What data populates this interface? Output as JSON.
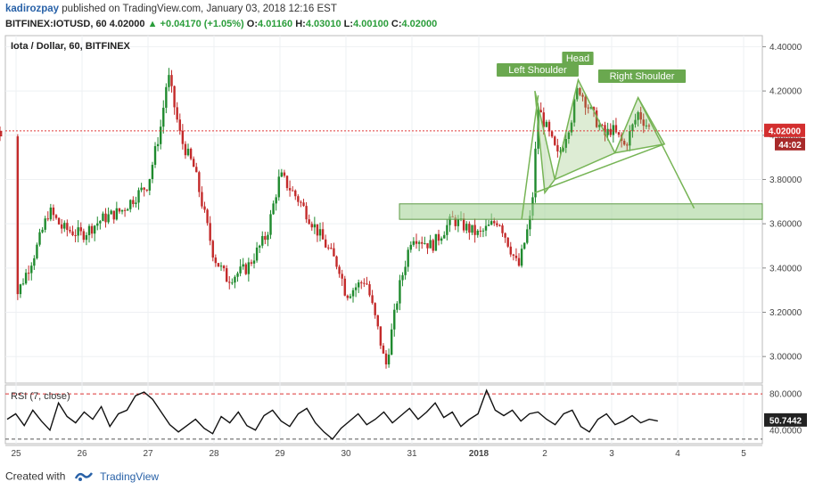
{
  "header": {
    "author": "kadirozpay",
    "published_text": "published on TradingView.com, January 03, 2018 12:16 EST",
    "symbol": "BITFINEX:IOTUSD, 60",
    "price": "4.02000",
    "change": "▲ +0.04170 (+1.05%)",
    "o_label": "O:",
    "o": "4.01160",
    "h_label": "H:",
    "h": "4.03010",
    "l_label": "L:",
    "l": "4.00100",
    "c_label": "C:",
    "c": "4.02000"
  },
  "footer": {
    "created_with": "Created with",
    "brand": "TradingView"
  },
  "chart_data": [
    {
      "type": "candlestick",
      "title": "Iota / Dollar, 60, BITFINEX",
      "x_ticks": [
        "25",
        "26",
        "27",
        "28",
        "29",
        "30",
        "31",
        "2018",
        "2",
        "3",
        "4",
        "5"
      ],
      "y_ticks": [
        "4.40000",
        "4.20000",
        "4.00000",
        "3.80000",
        "3.60000",
        "3.40000",
        "3.20000",
        "3.00000"
      ],
      "ylim": [
        2.88,
        4.45
      ],
      "last_price_label": "4.02000",
      "countdown_label": "44:02",
      "last_price": 4.02,
      "grid": true,
      "annotations": [
        "Left Shoulder",
        "Head",
        "Right Shoulder"
      ],
      "colors": {
        "up": "#1f8a2e",
        "down": "#c32a2a",
        "pattern": "#76b455",
        "zone": "#a7d39a",
        "price_line": "#e03a3a"
      },
      "support_zone": [
        3.62,
        3.69
      ],
      "approx_path": [
        [
          "25",
          3.27
        ],
        [
          "25.3",
          3.48
        ],
        [
          "25.5",
          3.66
        ],
        [
          "25.7",
          3.58
        ],
        [
          "26",
          3.55
        ],
        [
          "26.3",
          3.62
        ],
        [
          "26.6",
          3.66
        ],
        [
          "27",
          3.78
        ],
        [
          "27.2",
          4.05
        ],
        [
          "27.3",
          4.28
        ],
        [
          "27.5",
          3.98
        ],
        [
          "27.7",
          3.85
        ],
        [
          "28",
          3.45
        ],
        [
          "28.2",
          3.35
        ],
        [
          "28.5",
          3.4
        ],
        [
          "28.8",
          3.55
        ],
        [
          "29",
          3.82
        ],
        [
          "29.3",
          3.7
        ],
        [
          "29.6",
          3.55
        ],
        [
          "29.9",
          3.4
        ],
        [
          "30",
          3.28
        ],
        [
          "30.3",
          3.35
        ],
        [
          "30.5",
          3.1
        ],
        [
          "30.6",
          2.95
        ],
        [
          "30.8",
          3.3
        ],
        [
          "31",
          3.55
        ],
        [
          "31.3",
          3.5
        ],
        [
          "31.6",
          3.62
        ],
        [
          "2018",
          3.55
        ],
        [
          "1.3",
          3.62
        ],
        [
          "1.6",
          3.4
        ],
        [
          "1.8",
          3.65
        ],
        [
          "1.9",
          4.12
        ],
        [
          "2",
          4.05
        ],
        [
          "2.2",
          3.9
        ],
        [
          "2.4",
          4.08
        ],
        [
          "2.5",
          4.22
        ],
        [
          "2.7",
          4.1
        ],
        [
          "2.9",
          4.0
        ],
        [
          "3",
          4.03
        ],
        [
          "3.2",
          3.95
        ],
        [
          "3.4",
          4.1
        ],
        [
          "3.6",
          4.02
        ]
      ]
    },
    {
      "type": "line",
      "title": "RSI (7, close)",
      "y_ticks": [
        "80.0000",
        "40.0000"
      ],
      "last_value_label": "50.7442",
      "upper_band": 80,
      "lower_band": 30,
      "values": [
        52,
        58,
        45,
        62,
        50,
        40,
        70,
        55,
        48,
        60,
        52,
        66,
        44,
        58,
        62,
        78,
        82,
        74,
        60,
        46,
        38,
        45,
        52,
        42,
        36,
        55,
        48,
        60,
        45,
        40,
        56,
        62,
        50,
        44,
        58,
        64,
        48,
        38,
        30,
        42,
        50,
        58,
        46,
        52,
        60,
        48,
        56,
        64,
        52,
        60,
        70,
        54,
        60,
        44,
        52,
        58,
        84,
        62,
        56,
        62,
        50,
        58,
        60,
        52,
        46,
        58,
        62,
        44,
        38,
        52,
        58,
        46,
        50,
        56,
        48,
        52,
        50
      ]
    }
  ]
}
